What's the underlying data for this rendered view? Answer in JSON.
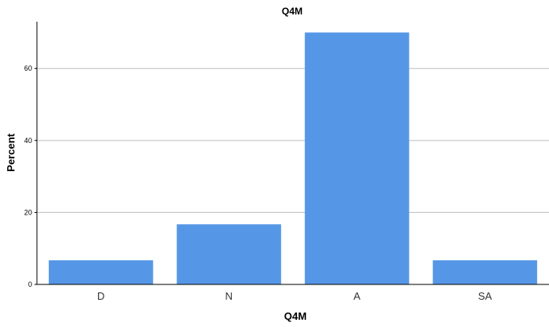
{
  "chart_data": {
    "type": "bar",
    "title": "Q4M",
    "xlabel": "Q4M",
    "ylabel": "Percent",
    "categories": [
      "D",
      "N",
      "A",
      "SA"
    ],
    "values": [
      6.7,
      16.7,
      70.0,
      6.7
    ],
    "ylim": [
      0,
      73
    ],
    "yticks": [
      0,
      20,
      40,
      60
    ],
    "grid": true,
    "legend": "none"
  },
  "colors": {
    "bar": "#5597e6",
    "grid": "#bdbdbd",
    "axis": "#000000",
    "text": "#000000"
  }
}
